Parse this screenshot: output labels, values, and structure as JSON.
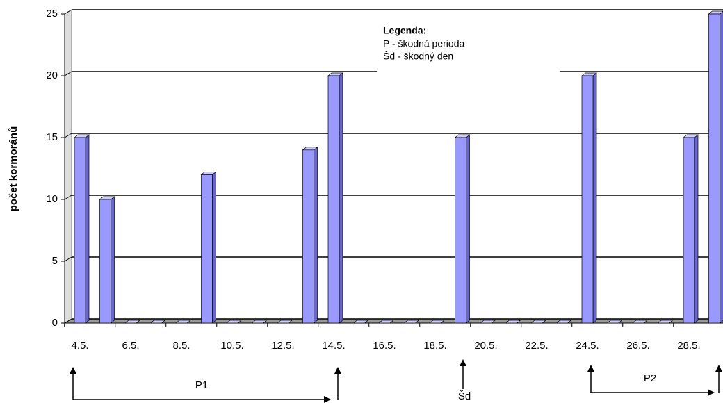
{
  "chart_data": {
    "type": "bar",
    "y_label": "počet kormoránů",
    "categories": [
      "4.5.",
      null,
      "6.5.",
      null,
      "8.5.",
      null,
      "10.5.",
      null,
      "12.5.",
      null,
      "14.5.",
      null,
      "16.5.",
      null,
      "18.5.",
      null,
      "20.5.",
      null,
      "22.5.",
      null,
      "24.5.",
      null,
      "26.5.",
      null,
      "28.5.",
      null
    ],
    "values": [
      15,
      10,
      0,
      0,
      0,
      12,
      0,
      0,
      0,
      14,
      20,
      0,
      0,
      0,
      0,
      15,
      0,
      0,
      0,
      0,
      20,
      0,
      0,
      0,
      15,
      25
    ],
    "color": "#9999ff",
    "ylim": [
      0,
      25
    ],
    "yticks": [
      0,
      5,
      10,
      15,
      20,
      25
    ],
    "grid": true,
    "legend_title": "Legenda:",
    "legend_lines": [
      "P - škodná perioda",
      "Šd - škodný den"
    ],
    "annotations": [
      "P1",
      "Šd",
      "P2"
    ]
  }
}
